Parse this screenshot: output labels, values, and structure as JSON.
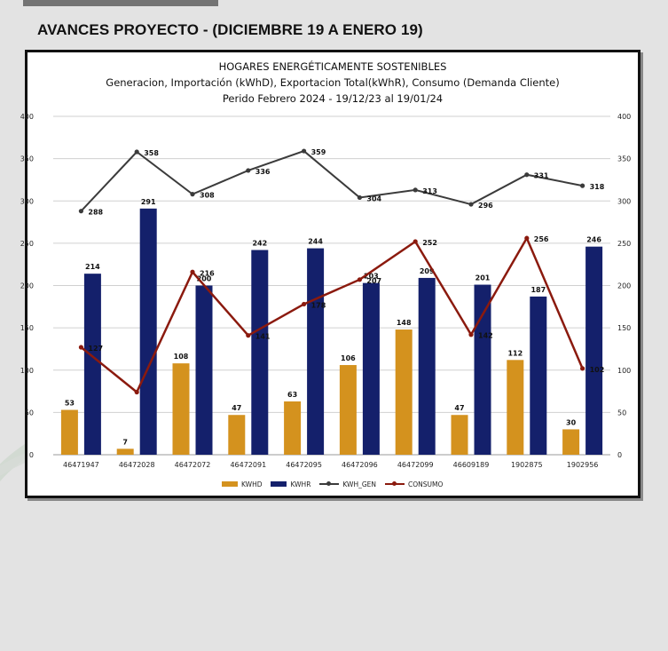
{
  "header": {
    "title": "AVANCES PROYECTO - (DICIEMBRE 19 A ENERO 19)"
  },
  "chart_data": {
    "type": "bar",
    "title": "HOGARES ENERGÉTICAMENTE SOSTENIBLES",
    "subtitle_1": "Generacion, Importación (kWhD), Exportacion Total(kWhR), Consumo (Demanda Cliente)",
    "subtitle_2": "Perido Febrero 2024 - 19/12/23 al 19/01/24",
    "categories": [
      "46471947",
      "46472028",
      "46472072",
      "46472091",
      "46472095",
      "46472096",
      "46472099",
      "46609189",
      "1902875",
      "1902956"
    ],
    "ylim": [
      0,
      400
    ],
    "yticks": [
      0,
      50,
      100,
      150,
      200,
      250,
      300,
      350,
      400
    ],
    "grid": true,
    "legend_position": "bottom",
    "series": [
      {
        "name": "KWHD",
        "kind": "bar",
        "color": "#d4921e",
        "values": [
          53,
          7,
          108,
          47,
          63,
          106,
          148,
          47,
          112,
          30
        ],
        "labels": [
          "53",
          "7",
          "108",
          "47",
          "63",
          "106",
          "148",
          "47",
          "112",
          "30"
        ]
      },
      {
        "name": "KWHR",
        "kind": "bar",
        "color": "#14206b",
        "values": [
          214,
          291,
          200,
          242,
          244,
          203,
          209,
          201,
          187,
          246
        ],
        "labels": [
          "214",
          "291",
          "200",
          "242",
          "244",
          "203",
          "209",
          "201",
          "187",
          "246"
        ]
      },
      {
        "name": "KWH_GEN",
        "kind": "line",
        "color": "#3b3b3b",
        "values": [
          288,
          358,
          308,
          336,
          359,
          304,
          313,
          296,
          331,
          318
        ],
        "labels": [
          "288",
          "358",
          "308",
          "336",
          "359",
          "304",
          "313",
          "296",
          "331",
          "318"
        ]
      },
      {
        "name": "CONSUMO",
        "kind": "line",
        "color": "#8b1a0e",
        "values": [
          127,
          74,
          216,
          141,
          178,
          207,
          252,
          142,
          256,
          102
        ],
        "labels": [
          "127",
          "",
          "216",
          "141",
          "178",
          "207",
          "252",
          "142",
          "256",
          "102"
        ]
      }
    ]
  }
}
